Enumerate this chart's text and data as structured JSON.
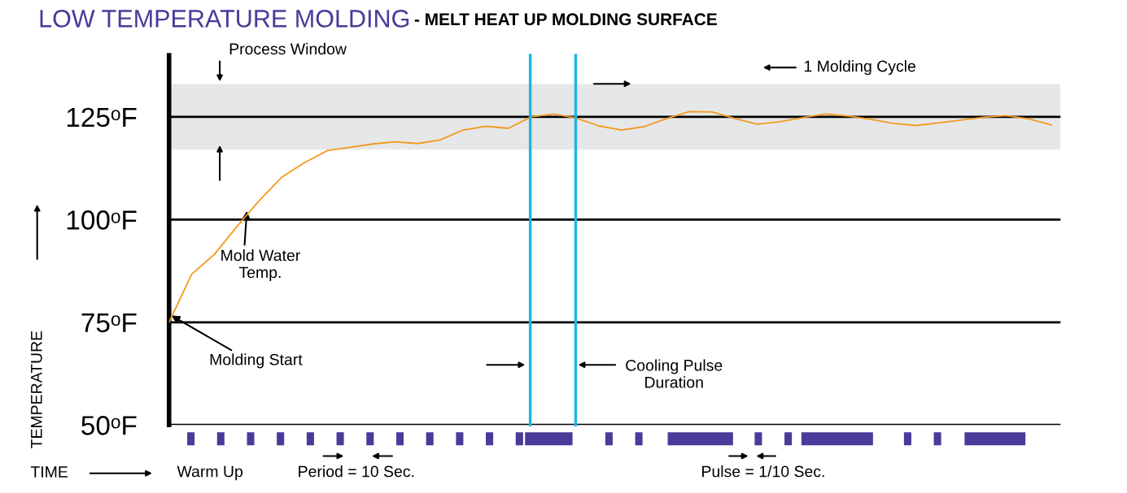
{
  "chart_data": {
    "type": "line",
    "title": "LOW TEMPERATURE MOLDING",
    "subtitle": "- MELT HEAT UP MOLDING SURFACE",
    "xlabel": "TIME",
    "ylabel": "TEMPERATURE",
    "categories": [
      null,
      null,
      null,
      null,
      null,
      null,
      null,
      null,
      null,
      null,
      null,
      null,
      null,
      null,
      null,
      null,
      null,
      null,
      null,
      null,
      null,
      null,
      null,
      null,
      null,
      null,
      null,
      null,
      null,
      null,
      null,
      null,
      null,
      null,
      null,
      null,
      null,
      null,
      null,
      null
    ],
    "series": [
      {
        "color": "#f39a1e",
        "values": [
          75,
          86.7,
          91.5,
          98.3,
          104.7,
          110.4,
          113.9,
          116.8,
          117.6,
          118.4,
          118.9,
          118.5,
          119.4,
          121.8,
          122.7,
          122.2,
          125.0,
          125.7,
          124.7,
          122.8,
          121.8,
          122.6,
          124.6,
          126.3,
          126.2,
          124.6,
          123.2,
          123.8,
          124.8,
          125.7,
          125.2,
          124.4,
          123.4,
          122.9,
          123.5,
          124.2,
          124.9,
          125.3,
          124.5,
          123.0
        ]
      }
    ],
    "ylim": [
      50,
      140
    ],
    "yticks": [
      {
        "value": 50,
        "label": "50ᵒF"
      },
      {
        "value": 75,
        "label": "75ᵒF"
      },
      {
        "value": 100,
        "label": "100ᵒF"
      },
      {
        "value": 125,
        "label": "125ᵒF"
      }
    ],
    "tick_labels": "y",
    "grid": "y",
    "legend": false,
    "marker": "none",
    "line_style": "solid",
    "bands": [
      {
        "axis": "y",
        "from": 117,
        "to": 133,
        "color": "#e6e7e8"
      }
    ],
    "annotations": [
      "Molding Start",
      "Mold Water\nTemp.",
      "Process Window",
      "1 Molding Cycle",
      "Cooling Pulse\nDuration",
      "Period = 10 Sec.",
      "Pulse = 1/10 Sec.",
      "Warm Up"
    ]
  }
}
